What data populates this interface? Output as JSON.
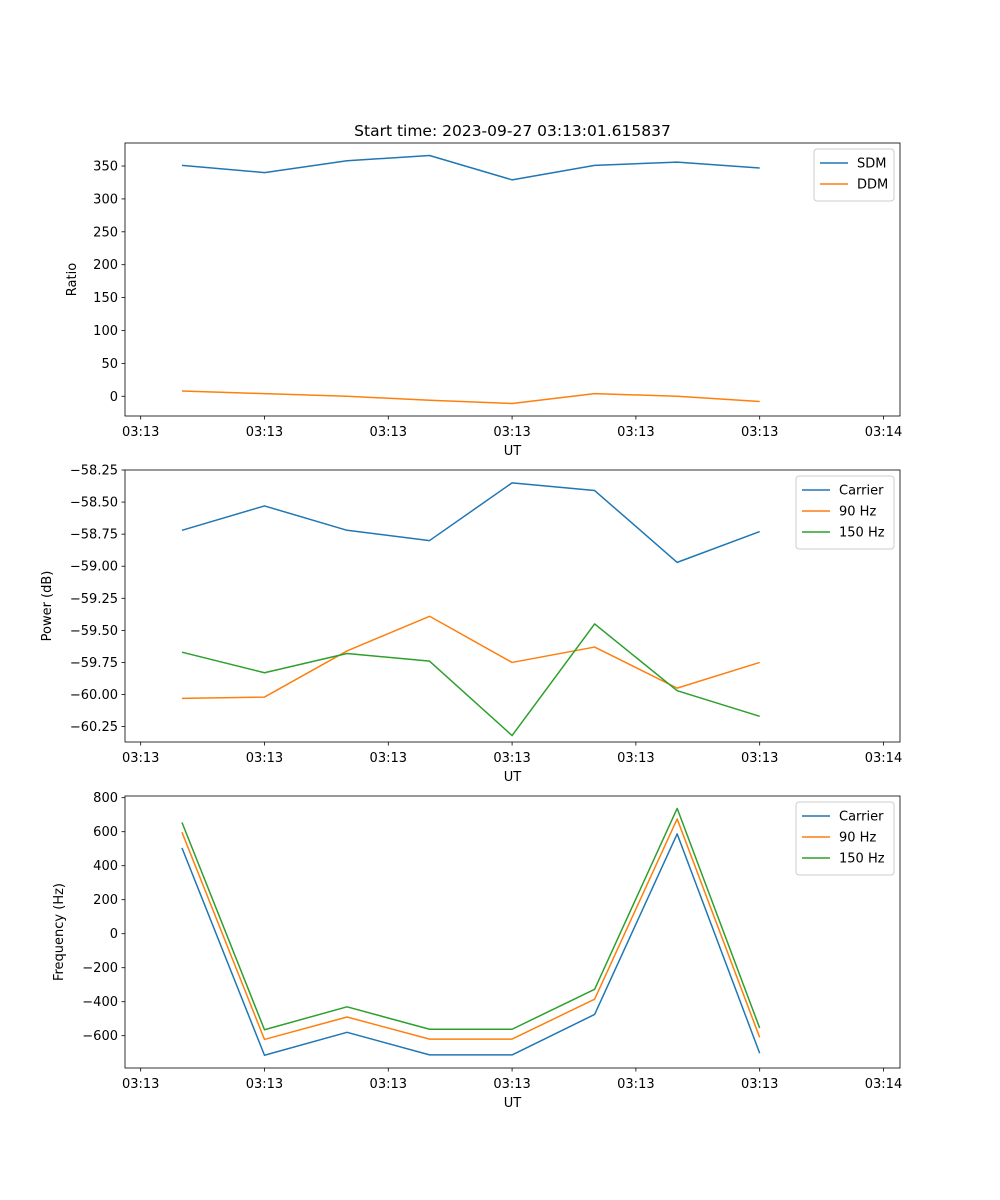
{
  "chart_data": [
    {
      "type": "line",
      "title": "Start time: 2023-09-27 03:13:01.615837",
      "xlabel": "UT",
      "ylabel": "Ratio",
      "x": [
        1,
        2,
        3,
        4,
        5,
        6,
        7,
        8
      ],
      "xlim": [
        0.31,
        9.7
      ],
      "xticks": [
        0.5,
        2.0,
        3.5,
        5.0,
        6.5,
        8.0,
        9.5
      ],
      "xtick_labels": [
        "03:13",
        "03:13",
        "03:13",
        "03:13",
        "03:13",
        "03:13",
        "03:14"
      ],
      "ylim": [
        -30,
        385
      ],
      "yticks": [
        0,
        50,
        100,
        150,
        200,
        250,
        300,
        350
      ],
      "ytick_labels": [
        "0",
        "50",
        "100",
        "150",
        "200",
        "250",
        "300",
        "350"
      ],
      "legend": "top-right",
      "series": [
        {
          "name": "SDM",
          "color": "#1f77b4",
          "values": [
            351,
            340,
            358,
            366,
            329,
            351,
            356,
            347
          ]
        },
        {
          "name": "DDM",
          "color": "#ff7f0e",
          "values": [
            8,
            4,
            0,
            -6,
            -11,
            4,
            0,
            -8
          ]
        }
      ]
    },
    {
      "type": "line",
      "title": "",
      "xlabel": "UT",
      "ylabel": "Power (dB)",
      "x": [
        1,
        2,
        3,
        4,
        5,
        6,
        7,
        8
      ],
      "xlim": [
        0.31,
        9.7
      ],
      "xticks": [
        0.5,
        2.0,
        3.5,
        5.0,
        6.5,
        8.0,
        9.5
      ],
      "xtick_labels": [
        "03:13",
        "03:13",
        "03:13",
        "03:13",
        "03:13",
        "03:13",
        "03:14"
      ],
      "ylim": [
        -60.37,
        -58.25
      ],
      "yticks": [
        -58.25,
        -58.5,
        -58.75,
        -59.0,
        -59.25,
        -59.5,
        -59.75,
        -60.0,
        -60.25
      ],
      "ytick_labels": [
        "−58.25",
        "−58.50",
        "−58.75",
        "−59.00",
        "−59.25",
        "−59.50",
        "−59.75",
        "−60.00",
        "−60.25"
      ],
      "legend": "top-right",
      "series": [
        {
          "name": "Carrier",
          "color": "#1f77b4",
          "values": [
            -58.72,
            -58.53,
            -58.72,
            -58.8,
            -58.35,
            -58.41,
            -58.97,
            -58.73
          ]
        },
        {
          "name": "90 Hz",
          "color": "#ff7f0e",
          "values": [
            -60.03,
            -60.02,
            -59.66,
            -59.39,
            -59.75,
            -59.63,
            -59.95,
            -59.75
          ]
        },
        {
          "name": "150 Hz",
          "color": "#2ca02c",
          "values": [
            -59.67,
            -59.83,
            -59.68,
            -59.74,
            -60.32,
            -59.45,
            -59.97,
            -60.17
          ]
        }
      ]
    },
    {
      "type": "line",
      "title": "",
      "xlabel": "UT",
      "ylabel": "Frequency (Hz)",
      "x": [
        1,
        2,
        3,
        4,
        5,
        6,
        7,
        8
      ],
      "xlim": [
        0.31,
        9.7
      ],
      "xticks": [
        0.5,
        2.0,
        3.5,
        5.0,
        6.5,
        8.0,
        9.5
      ],
      "xtick_labels": [
        "03:13",
        "03:13",
        "03:13",
        "03:13",
        "03:13",
        "03:13",
        "03:14"
      ],
      "ylim": [
        -790,
        810
      ],
      "yticks": [
        -600,
        -400,
        -200,
        0,
        200,
        400,
        600,
        800
      ],
      "ytick_labels": [
        "−600",
        "−400",
        "−200",
        "0",
        "200",
        "400",
        "600",
        "800"
      ],
      "legend": "top-right",
      "series": [
        {
          "name": "Carrier",
          "color": "#1f77b4",
          "values": [
            505,
            -715,
            -580,
            -713,
            -713,
            -475,
            587,
            -703
          ]
        },
        {
          "name": "90 Hz",
          "color": "#ff7f0e",
          "values": [
            597,
            -622,
            -490,
            -620,
            -620,
            -385,
            675,
            -610
          ]
        },
        {
          "name": "150 Hz",
          "color": "#2ca02c",
          "values": [
            655,
            -565,
            -430,
            -562,
            -562,
            -327,
            737,
            -555
          ]
        }
      ]
    }
  ]
}
